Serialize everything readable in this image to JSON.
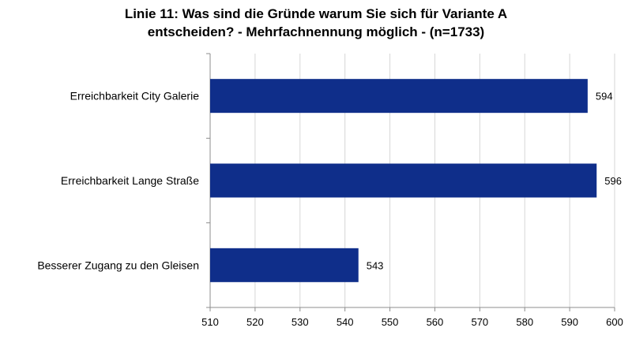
{
  "chart_data": {
    "type": "bar",
    "orientation": "horizontal",
    "title_lines": [
      "Linie 11: Was sind die Gründe warum Sie sich für Variante A",
      "entscheiden? - Mehrfachnennung möglich - (n=1733)"
    ],
    "categories": [
      "Erreichbarkeit City Galerie",
      "Erreichbarkeit Lange Straße",
      "Besserer Zugang zu den Gleisen"
    ],
    "values": [
      594,
      596,
      543
    ],
    "data_labels": [
      "594",
      "596",
      "543"
    ],
    "xlim": [
      510,
      600
    ],
    "x_ticks": [
      510,
      520,
      530,
      540,
      550,
      560,
      570,
      580,
      590,
      600
    ],
    "x_tick_labels": [
      "510",
      "520",
      "530",
      "540",
      "550",
      "560",
      "570",
      "580",
      "590",
      "600"
    ],
    "grid": true,
    "legend": "none",
    "bar_color": "#0f2e8a",
    "grid_color": "#d6d6d6",
    "axis_color": "#8c8c8c"
  }
}
